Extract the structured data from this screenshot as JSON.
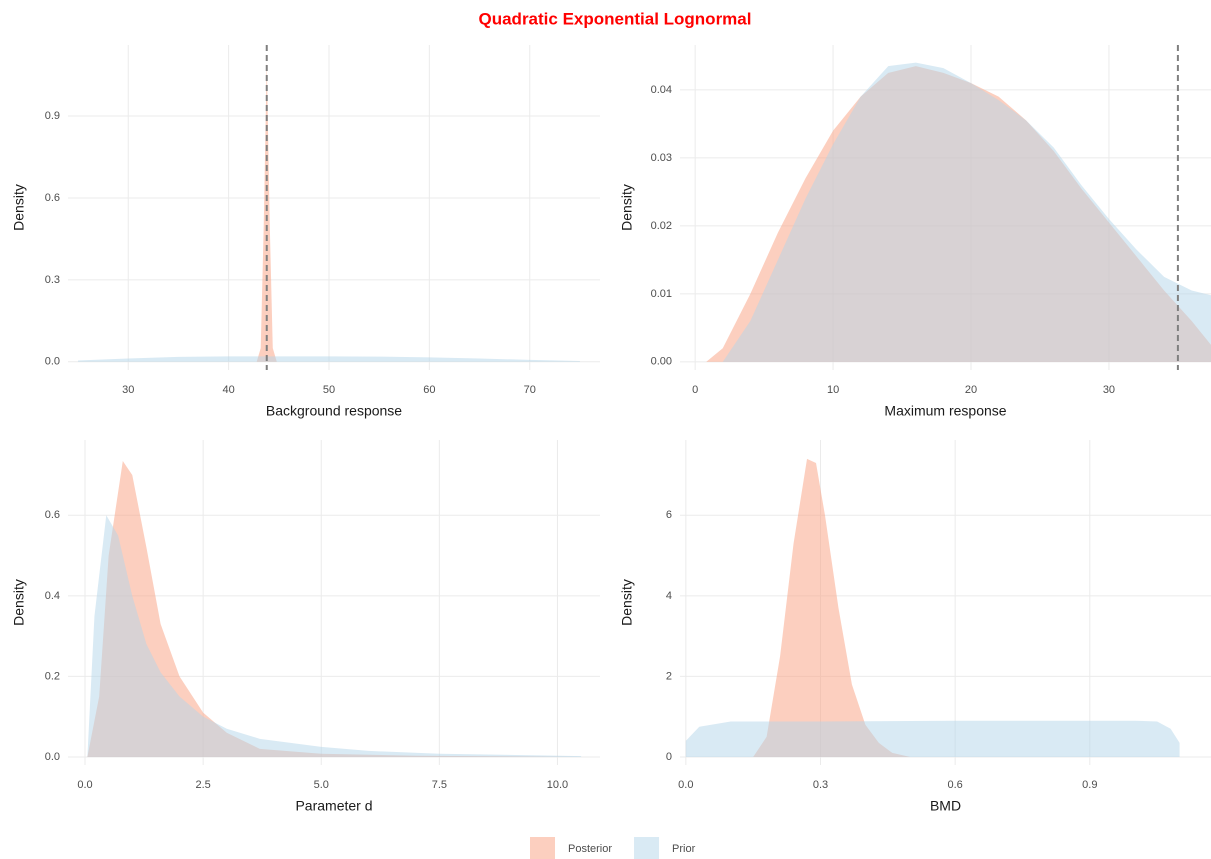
{
  "title": "Quadratic Exponential Lognormal",
  "chart_data": [
    {
      "type": "area",
      "xlabel": "Background response",
      "ylabel": "Density",
      "xlim": [
        24,
        77
      ],
      "ylim": [
        -0.03,
        1.16
      ],
      "xticks": [
        30,
        40,
        50,
        60,
        70
      ],
      "yticks": [
        {
          "value": 0,
          "label": "0.0"
        },
        0.3,
        0.6,
        0.9
      ],
      "grid": true,
      "vline": 43.8,
      "series": [
        {
          "name": "Posterior",
          "color": "#f9a07f",
          "x": [
            42.8,
            43.2,
            43.5,
            43.8,
            44.1,
            44.4,
            44.8
          ],
          "values": [
            0,
            0.05,
            0.5,
            1.1,
            0.5,
            0.05,
            0
          ]
        },
        {
          "name": "Prior",
          "color": "#b3d6ea",
          "x": [
            25,
            30,
            35,
            40,
            45,
            50,
            55,
            60,
            65,
            70,
            75
          ],
          "values": [
            0.005,
            0.012,
            0.018,
            0.02,
            0.02,
            0.02,
            0.019,
            0.016,
            0.012,
            0.007,
            0.003
          ]
        }
      ]
    },
    {
      "type": "area",
      "xlabel": "Maximum response",
      "ylabel": "Density",
      "xlim": [
        -1.1,
        37.4
      ],
      "ylim": [
        -0.0012,
        0.0466
      ],
      "xticks": [
        0,
        10,
        20,
        30
      ],
      "yticks": [
        {
          "value": 0,
          "label": "0.00"
        },
        {
          "value": 0.01,
          "label": "0.01"
        },
        {
          "value": 0.02,
          "label": "0.02"
        },
        {
          "value": 0.03,
          "label": "0.03"
        },
        {
          "value": 0.04,
          "label": "0.04"
        }
      ],
      "grid": true,
      "vline": 35,
      "series": [
        {
          "color": "#f9a07f",
          "x": [
            0.8,
            2,
            4,
            6,
            8,
            10,
            12,
            14,
            16,
            18,
            20,
            22,
            24,
            26,
            28,
            30,
            32,
            34,
            36,
            37.4
          ],
          "values": [
            0,
            0.002,
            0.01,
            0.019,
            0.027,
            0.034,
            0.039,
            0.0425,
            0.0435,
            0.0425,
            0.041,
            0.039,
            0.0355,
            0.031,
            0.0255,
            0.0205,
            0.0155,
            0.0105,
            0.006,
            0.0025
          ]
        },
        {
          "color": "#b3d6ea",
          "x": [
            2,
            4,
            6,
            8,
            10,
            12,
            14,
            16,
            18,
            20,
            22,
            24,
            26,
            28,
            30,
            32,
            34,
            36,
            37.4
          ],
          "values": [
            0,
            0.006,
            0.015,
            0.024,
            0.032,
            0.039,
            0.0435,
            0.044,
            0.0432,
            0.041,
            0.0385,
            0.0355,
            0.0315,
            0.026,
            0.021,
            0.0165,
            0.0125,
            0.0105,
            0.0098
          ]
        }
      ]
    },
    {
      "type": "area",
      "xlabel": "Parameter d",
      "ylabel": "Density",
      "xlim": [
        -0.36,
        10.9
      ],
      "ylim": [
        -0.02,
        0.787
      ],
      "xticks": [
        {
          "value": 0,
          "label": "0.0"
        },
        2.5,
        {
          "value": 5,
          "label": "5.0"
        },
        7.5,
        {
          "value": 10,
          "label": "10.0"
        }
      ],
      "yticks": [
        {
          "value": 0,
          "label": "0.0"
        },
        0.2,
        0.4,
        0.6
      ],
      "grid": true,
      "series": [
        {
          "color": "#f9a07f",
          "x": [
            0.05,
            0.3,
            0.5,
            0.8,
            1.0,
            1.3,
            1.6,
            2.0,
            2.5,
            3,
            3.7,
            5,
            7,
            10.5
          ],
          "values": [
            0,
            0.15,
            0.5,
            0.735,
            0.7,
            0.52,
            0.33,
            0.2,
            0.11,
            0.06,
            0.02,
            0.008,
            0.003,
            0
          ]
        },
        {
          "color": "#b3d6ea",
          "x": [
            0.05,
            0.2,
            0.45,
            0.7,
            1,
            1.3,
            1.6,
            2,
            2.5,
            3,
            3.7,
            5,
            6,
            7.5,
            10.5
          ],
          "values": [
            0,
            0.35,
            0.6,
            0.55,
            0.4,
            0.28,
            0.21,
            0.15,
            0.1,
            0.07,
            0.045,
            0.025,
            0.015,
            0.008,
            0.002
          ]
        }
      ]
    },
    {
      "type": "area",
      "xlabel": "BMD",
      "ylabel": "Density",
      "xlim": [
        -0.013,
        1.17
      ],
      "ylim": [
        -0.2,
        7.87
      ],
      "xticks": [
        {
          "value": 0,
          "label": "0.0"
        },
        0.3,
        0.6,
        0.9
      ],
      "yticks": [
        0,
        2,
        4,
        6
      ],
      "grid": true,
      "series": [
        {
          "color": "#f9a07f",
          "x": [
            0.15,
            0.18,
            0.21,
            0.24,
            0.27,
            0.29,
            0.31,
            0.34,
            0.37,
            0.4,
            0.43,
            0.46,
            0.5
          ],
          "values": [
            0,
            0.5,
            2.5,
            5.3,
            7.4,
            7.3,
            6,
            3.7,
            1.8,
            0.8,
            0.35,
            0.1,
            0
          ]
        },
        {
          "color": "#b3d6ea",
          "x": [
            0,
            0.03,
            0.1,
            0.3,
            0.6,
            0.9,
            1.0,
            1.05,
            1.08,
            1.1
          ],
          "values": [
            0.4,
            0.75,
            0.88,
            0.88,
            0.9,
            0.9,
            0.9,
            0.88,
            0.7,
            0.35
          ]
        }
      ]
    }
  ]
}
